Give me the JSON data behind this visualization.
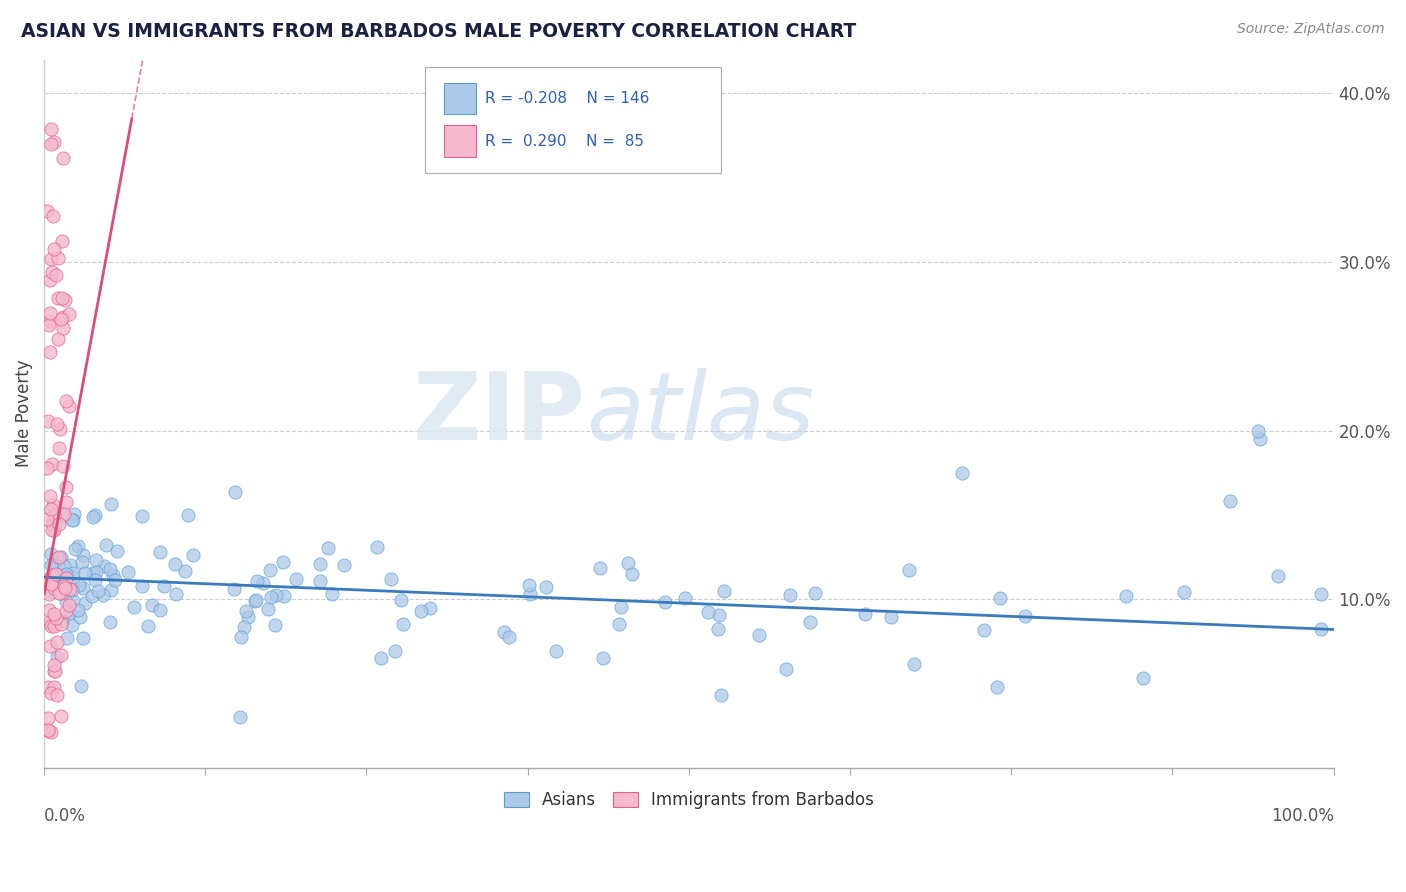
{
  "title": "ASIAN VS IMMIGRANTS FROM BARBADOS MALE POVERTY CORRELATION CHART",
  "source_text": "Source: ZipAtlas.com",
  "ylabel": "Male Poverty",
  "xlim": [
    0,
    1.0
  ],
  "ylim": [
    0,
    0.42
  ],
  "asian_R": -0.208,
  "asian_N": 146,
  "barbados_R": 0.29,
  "barbados_N": 85,
  "asian_color": "#adc8e8",
  "asian_edge_color": "#5a9fd4",
  "asian_line_color": "#3a7abf",
  "barbados_color": "#f5b8cc",
  "barbados_edge_color": "#e06090",
  "barbados_line_color": "#d94f7a",
  "background_color": "#ffffff",
  "grid_color": "#cccccc",
  "ytick_vals": [
    0.0,
    0.1,
    0.2,
    0.3,
    0.4
  ],
  "ytick_labels": [
    "",
    "10.0%",
    "20.0%",
    "30.0%",
    "40.0%"
  ],
  "legend_R1": "R = -0.208",
  "legend_N1": "N = 146",
  "legend_R2": "R =  0.290",
  "legend_N2": "N =  85",
  "watermark_text": "ZIPatlas",
  "asian_trend_y0": 0.113,
  "asian_trend_y1": 0.082,
  "barbados_trend_x0": 0.0,
  "barbados_trend_x1": 0.068,
  "barbados_trend_y0": 0.103,
  "barbados_trend_y1": 0.385
}
